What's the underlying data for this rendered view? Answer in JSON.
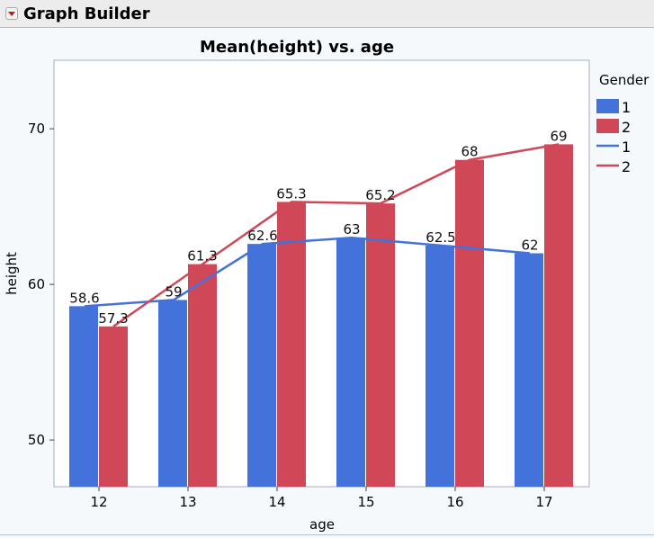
{
  "header": {
    "title": "Graph Builder",
    "menu_icon": "red-triangle-menu-icon"
  },
  "chart_data": {
    "type": "bar",
    "title": "Mean(height) vs. age",
    "xlabel": "age",
    "ylabel": "height",
    "categories": [
      "12",
      "13",
      "14",
      "15",
      "16",
      "17"
    ],
    "ylim": [
      47,
      74.4
    ],
    "yticks": [
      50,
      60,
      70
    ],
    "grid": false,
    "legend": {
      "title": "Gender",
      "placement": "right",
      "items": [
        {
          "label": "1",
          "kind": "bar",
          "color": "#4472db"
        },
        {
          "label": "2",
          "kind": "bar",
          "color": "#d04858"
        },
        {
          "label": "1",
          "kind": "line",
          "color": "#4472db"
        },
        {
          "label": "2",
          "kind": "line",
          "color": "#d04858"
        }
      ]
    },
    "series": [
      {
        "name": "1",
        "color": "#4472db",
        "values": [
          58.6,
          59,
          62.6,
          63,
          62.5,
          62
        ]
      },
      {
        "name": "2",
        "color": "#d04858",
        "values": [
          57.3,
          61.3,
          65.3,
          65.2,
          68,
          69
        ]
      }
    ],
    "data_labels": [
      [
        "58.6",
        "59",
        "62.6",
        "63",
        "62.5",
        "62"
      ],
      [
        "57.3",
        "61.3",
        "65.3",
        "65.2",
        "68",
        "69"
      ]
    ]
  }
}
